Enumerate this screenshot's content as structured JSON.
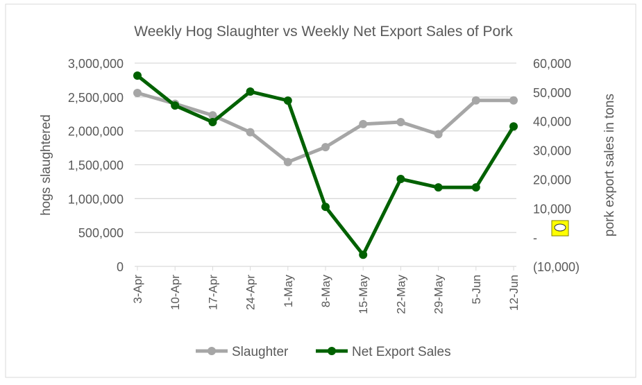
{
  "chart_data": {
    "type": "line",
    "title": "Weekly Hog Slaughter  vs Weekly Net Export Sales of Pork",
    "categories": [
      "3-Apr",
      "10-Apr",
      "17-Apr",
      "24-Apr",
      "1-May",
      "8-May",
      "15-May",
      "22-May",
      "29-May",
      "5-Jun",
      "12-Jun"
    ],
    "ylabel": "hogs slaughtered",
    "y2label": "pork export sales in tons",
    "ylim": [
      0,
      3000000
    ],
    "y2lim": [
      -10000,
      60000
    ],
    "yticks": [
      "0",
      "500,000",
      "1,000,000",
      "1,500,000",
      "2,000,000",
      "2,500,000",
      "3,000,000"
    ],
    "y2ticks": [
      "(10,000)",
      "-",
      "10,000",
      "20,000",
      "30,000",
      "40,000",
      "50,000",
      "60,000"
    ],
    "grid": true,
    "legend_position": "bottom",
    "series": [
      {
        "name": "Slaughter",
        "axis": "left",
        "color": "#A6A6A6",
        "values": [
          2560000,
          2400000,
          2230000,
          1980000,
          1540000,
          1760000,
          2100000,
          2130000,
          1950000,
          2450000,
          2450000
        ]
      },
      {
        "name": "Net Export Sales",
        "axis": "right",
        "color": "#006100",
        "values": [
          55700,
          45400,
          39700,
          50200,
          47100,
          10500,
          -6000,
          20100,
          17200,
          17200,
          38200
        ]
      }
    ]
  }
}
